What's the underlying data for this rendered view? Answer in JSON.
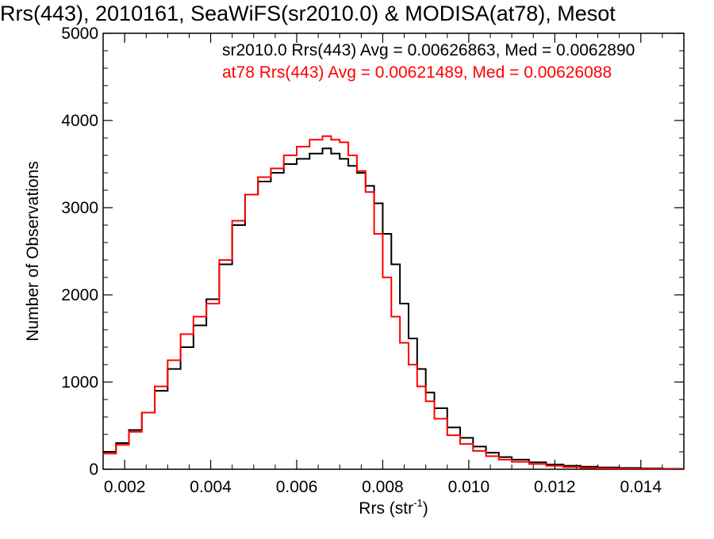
{
  "chart_data": {
    "type": "line",
    "title": "Rrs(443), 2010161, SeaWiFS(sr2010.0) & MODISA(at78), Mesot",
    "xlabel": "Rrs (str",
    "xlabel_sup": "-1",
    "xlabel_close": ")",
    "ylabel": "Number of Observations",
    "xlim": [
      0.0015,
      0.015
    ],
    "ylim": [
      0,
      5000
    ],
    "x_ticks": [
      0.002,
      0.004,
      0.006,
      0.008,
      0.01,
      0.012,
      0.014
    ],
    "x_tick_labels": [
      "0.002",
      "0.004",
      "0.006",
      "0.008",
      "0.010",
      "0.012",
      "0.014"
    ],
    "y_ticks": [
      0,
      1000,
      2000,
      3000,
      4000,
      5000
    ],
    "y_tick_labels": [
      "0",
      "1000",
      "2000",
      "3000",
      "4000",
      "5000"
    ],
    "grid": false,
    "annotations": [
      "sr2010.0 Rrs(443) Avg = 0.00626863, Med = 0.0062890",
      "at78 Rrs(443) Avg = 0.00621489, Med = 0.00626088"
    ],
    "series": [
      {
        "color": "#000000",
        "step": "post",
        "x": [
          0.0015,
          0.0018,
          0.0021,
          0.0024,
          0.0027,
          0.003,
          0.0033,
          0.0036,
          0.0039,
          0.0042,
          0.0045,
          0.0048,
          0.0051,
          0.0054,
          0.0057,
          0.006,
          0.0063,
          0.0066,
          0.0068,
          0.007,
          0.0072,
          0.0074,
          0.0076,
          0.0078,
          0.008,
          0.0082,
          0.0084,
          0.0086,
          0.0088,
          0.009,
          0.0092,
          0.0095,
          0.0098,
          0.0101,
          0.0104,
          0.0107,
          0.011,
          0.0114,
          0.0118,
          0.0122,
          0.0126,
          0.013,
          0.0135,
          0.014,
          0.0145,
          0.015
        ],
        "y": [
          200,
          300,
          450,
          650,
          900,
          1150,
          1400,
          1650,
          1950,
          2350,
          2800,
          3150,
          3300,
          3400,
          3500,
          3560,
          3620,
          3680,
          3620,
          3560,
          3480,
          3400,
          3250,
          3050,
          2700,
          2350,
          1900,
          1500,
          1150,
          880,
          700,
          480,
          360,
          260,
          190,
          140,
          110,
          80,
          55,
          40,
          30,
          20,
          15,
          10,
          5,
          5
        ]
      },
      {
        "color": "#ff0000",
        "step": "post",
        "x": [
          0.0015,
          0.0018,
          0.0021,
          0.0024,
          0.0027,
          0.003,
          0.0033,
          0.0036,
          0.0039,
          0.0042,
          0.0045,
          0.0048,
          0.0051,
          0.0054,
          0.0057,
          0.006,
          0.0063,
          0.0066,
          0.0068,
          0.007,
          0.0072,
          0.0074,
          0.0076,
          0.0078,
          0.008,
          0.0082,
          0.0084,
          0.0086,
          0.0088,
          0.009,
          0.0092,
          0.0095,
          0.0098,
          0.0101,
          0.0104,
          0.0107,
          0.011,
          0.0114,
          0.0118,
          0.0122,
          0.0126,
          0.013,
          0.0135,
          0.014,
          0.0145,
          0.015
        ],
        "y": [
          180,
          280,
          430,
          650,
          950,
          1250,
          1550,
          1750,
          1900,
          2400,
          2850,
          3150,
          3350,
          3450,
          3600,
          3700,
          3780,
          3820,
          3780,
          3750,
          3600,
          3420,
          3180,
          2700,
          2200,
          1750,
          1450,
          1200,
          950,
          780,
          580,
          390,
          290,
          210,
          150,
          110,
          85,
          60,
          40,
          25,
          15,
          10,
          5,
          5,
          0,
          0
        ]
      }
    ]
  }
}
